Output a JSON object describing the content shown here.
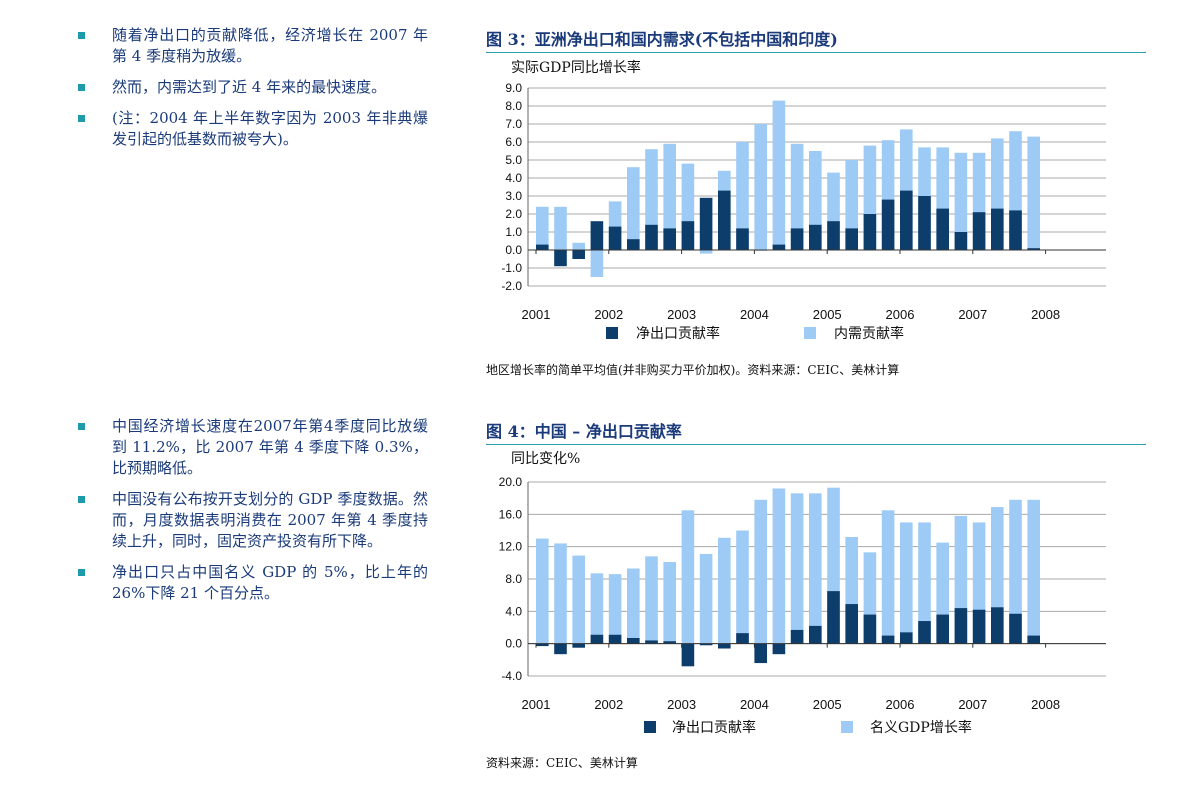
{
  "left_bullets_top": [
    "随着净出口的贡献降低，经济增长在 2007 年第 4 季度稍为放缓。",
    "然而，内需达到了近 4 年来的最快速度。",
    "(注：2004 年上半年数字因为 2003 年非典爆发引起的低基数而被夸大)。"
  ],
  "left_bullets_bottom": [
    "中国经济增长速度在2007年第4季度同比放缓到 11.2%，比 2007 年第 4 季度下降 0.3%，比预期略低。",
    "中国没有公布按开支划分的 GDP 季度数据。然而，月度数据表明消费在 2007 年第 4 季度持续上升，同时，固定资产投资有所下降。",
    "净出口只占中国名义 GDP 的 5%，比上年的 26%下降 21 个百分点。"
  ],
  "figure3": {
    "title": "图 3：亚洲净出口和国内需求(不包括中国和印度)",
    "unit": "实际GDP同比增长率",
    "source": "地区增长率的简单平均值(并非购买力平价加权)。资料来源：CEIC、美林计算"
  },
  "figure4": {
    "title": "图 4：中国 – 净出口贡献率",
    "unit": "同比变化%",
    "source": "资料来源：CEIC、美林计算"
  },
  "colors": {
    "dark": "#0d3d6b",
    "light": "#9dcbf5",
    "text": "#1a3a7a",
    "accent": "#1f9aa8"
  },
  "chart_data": [
    {
      "type": "bar",
      "title": "图 3：亚洲净出口和国内需求(不包括中国和印度)",
      "ylabel": "实际GDP同比增长率",
      "ylim": [
        -2.0,
        9.0
      ],
      "yticks": [
        "9.0",
        "8.0",
        "7.0",
        "6.0",
        "5.0",
        "4.0",
        "3.0",
        "2.0",
        "1.0",
        "0.0",
        "-1.0",
        "-2.0"
      ],
      "x_labels": [
        "2001",
        "2002",
        "2003",
        "2004",
        "2005",
        "2006",
        "2007",
        "2008"
      ],
      "grid": true,
      "legend": "bottom",
      "series": [
        {
          "name": "净出口贡献率",
          "values": [
            0.3,
            -0.9,
            -0.5,
            1.6,
            1.3,
            0.6,
            1.4,
            1.2,
            1.6,
            2.9,
            3.3,
            1.2,
            0.0,
            0.3,
            1.2,
            1.4,
            1.6,
            1.2,
            2.0,
            2.8,
            3.3,
            3.0,
            2.3,
            1.0,
            2.1,
            2.3,
            2.2,
            0.1
          ]
        },
        {
          "name": "内需贡献率",
          "values": [
            2.4,
            2.4,
            0.4,
            -1.5,
            2.7,
            4.6,
            5.6,
            5.9,
            4.8,
            -0.2,
            4.4,
            6.0,
            7.0,
            8.3,
            5.9,
            5.5,
            4.3,
            5.0,
            5.8,
            6.1,
            6.7,
            5.7,
            5.7,
            5.4,
            5.4,
            6.2,
            6.6,
            6.3
          ]
        }
      ]
    },
    {
      "type": "bar",
      "title": "图 4：中国 – 净出口贡献率",
      "ylabel": "同比变化%",
      "ylim": [
        -4.0,
        20.0
      ],
      "yticks": [
        "20.0",
        "16.0",
        "12.0",
        "8.0",
        "4.0",
        "0.0",
        "-4.0"
      ],
      "x_labels": [
        "2001",
        "2002",
        "2003",
        "2004",
        "2005",
        "2006",
        "2007",
        "2008"
      ],
      "grid": true,
      "legend": "bottom",
      "series": [
        {
          "name": "净出口贡献率",
          "values": [
            -0.3,
            -1.3,
            -0.5,
            1.1,
            1.1,
            0.7,
            0.4,
            0.3,
            -2.8,
            -0.2,
            -0.6,
            1.3,
            -2.4,
            -1.3,
            1.7,
            2.2,
            6.5,
            4.9,
            3.6,
            1.0,
            1.4,
            2.8,
            3.6,
            4.4,
            4.2,
            4.5,
            3.7,
            1.0
          ]
        },
        {
          "name": "名义GDP增长率",
          "values": [
            13.0,
            12.4,
            10.9,
            8.7,
            8.6,
            9.3,
            10.8,
            10.1,
            16.5,
            11.1,
            13.1,
            14.0,
            17.8,
            19.2,
            18.6,
            18.6,
            19.3,
            13.2,
            11.3,
            16.5,
            15.0,
            15.0,
            12.5,
            15.8,
            15.0,
            16.9,
            17.8,
            17.8
          ]
        }
      ]
    }
  ]
}
